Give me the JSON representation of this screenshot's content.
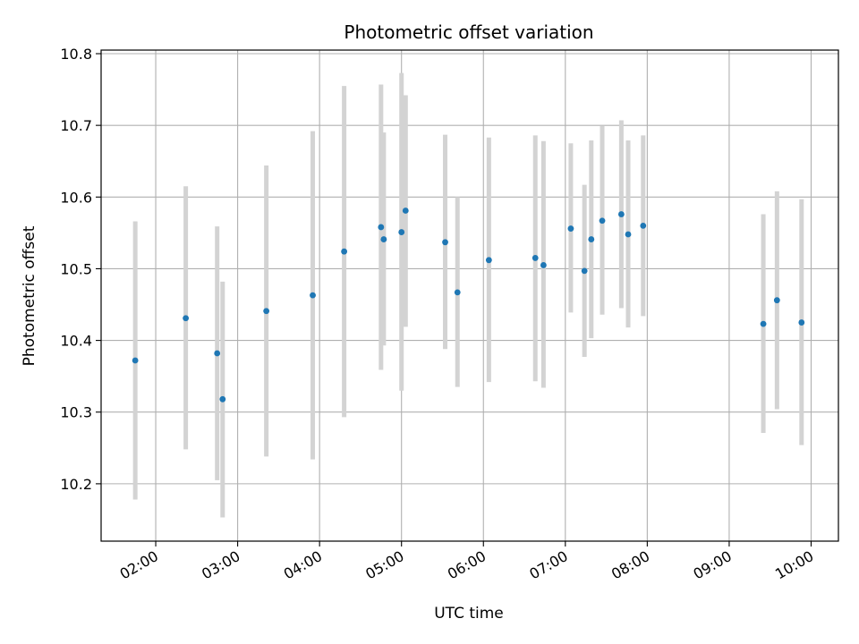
{
  "chart_data": {
    "type": "scatter",
    "title": "Photometric offset variation",
    "xlabel": "UTC time",
    "ylabel": "Photometric offset",
    "x_axis": {
      "kind": "time",
      "range": [
        "01:20",
        "10:20"
      ],
      "ticks": [
        "02:00",
        "03:00",
        "04:00",
        "05:00",
        "06:00",
        "07:00",
        "08:00",
        "09:00",
        "10:00"
      ]
    },
    "ylim": [
      10.12,
      10.805
    ],
    "yticks": [
      "10.2",
      "10.3",
      "10.4",
      "10.5",
      "10.6",
      "10.7",
      "10.8"
    ],
    "grid": true,
    "legend": "none",
    "colors": {
      "point": "#1f77b4",
      "errorbar": "#d3d3d3",
      "grid": "#b0b0b0"
    },
    "points": [
      {
        "x": "01:45",
        "y": 10.372,
        "low": 10.178,
        "high": 10.566
      },
      {
        "x": "02:22",
        "y": 10.431,
        "low": 10.248,
        "high": 10.615
      },
      {
        "x": "02:45",
        "y": 10.382,
        "low": 10.205,
        "high": 10.559
      },
      {
        "x": "02:49",
        "y": 10.318,
        "low": 10.153,
        "high": 10.482
      },
      {
        "x": "03:21",
        "y": 10.441,
        "low": 10.238,
        "high": 10.644
      },
      {
        "x": "03:55",
        "y": 10.463,
        "low": 10.234,
        "high": 10.692
      },
      {
        "x": "04:18",
        "y": 10.524,
        "low": 10.293,
        "high": 10.755
      },
      {
        "x": "04:45",
        "y": 10.558,
        "low": 10.359,
        "high": 10.757
      },
      {
        "x": "04:47",
        "y": 10.541,
        "low": 10.393,
        "high": 10.69
      },
      {
        "x": "05:00",
        "y": 10.551,
        "low": 10.33,
        "high": 10.773
      },
      {
        "x": "05:03",
        "y": 10.581,
        "low": 10.419,
        "high": 10.742
      },
      {
        "x": "05:32",
        "y": 10.537,
        "low": 10.388,
        "high": 10.687
      },
      {
        "x": "05:41",
        "y": 10.467,
        "low": 10.335,
        "high": 10.6
      },
      {
        "x": "06:04",
        "y": 10.512,
        "low": 10.342,
        "high": 10.683
      },
      {
        "x": "06:38",
        "y": 10.515,
        "low": 10.343,
        "high": 10.686
      },
      {
        "x": "06:44",
        "y": 10.505,
        "low": 10.334,
        "high": 10.678
      },
      {
        "x": "07:04",
        "y": 10.556,
        "low": 10.439,
        "high": 10.675
      },
      {
        "x": "07:14",
        "y": 10.497,
        "low": 10.377,
        "high": 10.617
      },
      {
        "x": "07:19",
        "y": 10.541,
        "low": 10.403,
        "high": 10.679
      },
      {
        "x": "07:27",
        "y": 10.567,
        "low": 10.436,
        "high": 10.699
      },
      {
        "x": "07:41",
        "y": 10.576,
        "low": 10.445,
        "high": 10.707
      },
      {
        "x": "07:46",
        "y": 10.548,
        "low": 10.418,
        "high": 10.679
      },
      {
        "x": "07:57",
        "y": 10.56,
        "low": 10.434,
        "high": 10.686
      },
      {
        "x": "09:25",
        "y": 10.423,
        "low": 10.271,
        "high": 10.576
      },
      {
        "x": "09:35",
        "y": 10.456,
        "low": 10.304,
        "high": 10.608
      },
      {
        "x": "09:53",
        "y": 10.425,
        "low": 10.254,
        "high": 10.597
      }
    ]
  }
}
